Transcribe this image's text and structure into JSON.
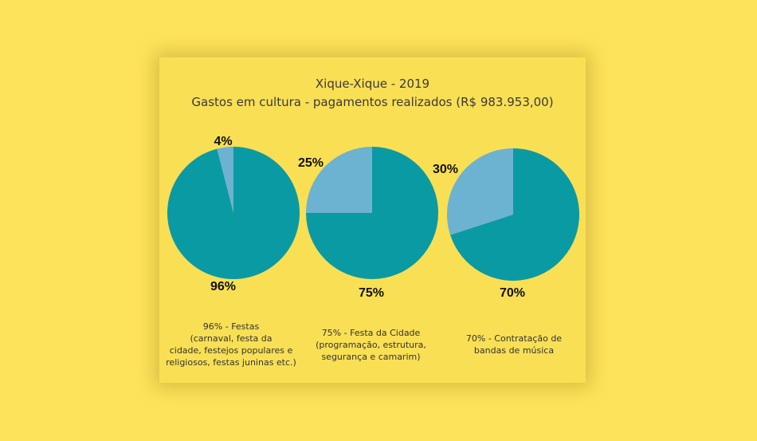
{
  "title": "Xique-Xique - 2019",
  "subtitle": "Gastos em cultura - pagamentos realizados (R$ 983.953,00)",
  "colors": {
    "major": "#0a9aa3",
    "minor": "#6cb2d1",
    "background": "#fde35b",
    "card": "#f9df54"
  },
  "chart_data": [
    {
      "type": "pie",
      "slices": [
        {
          "label": "96%",
          "value": 96,
          "color": "#0a9aa3"
        },
        {
          "label": "4%",
          "value": 4,
          "color": "#6cb2d1"
        }
      ],
      "caption": [
        "96% - Festas",
        "(carnaval, festa da",
        "cidade, festejos populares e",
        "religiosos, festas juninas etc.)"
      ]
    },
    {
      "type": "pie",
      "slices": [
        {
          "label": "75%",
          "value": 75,
          "color": "#0a9aa3"
        },
        {
          "label": "25%",
          "value": 25,
          "color": "#6cb2d1"
        }
      ],
      "caption": [
        "75% - Festa da Cidade",
        "(programação, estrutura,",
        "segurança e camarim)"
      ]
    },
    {
      "type": "pie",
      "slices": [
        {
          "label": "70%",
          "value": 70,
          "color": "#0a9aa3"
        },
        {
          "label": "30%",
          "value": 30,
          "color": "#6cb2d1"
        }
      ],
      "caption": [
        "70% - Contratação de",
        "bandas de música"
      ]
    }
  ]
}
